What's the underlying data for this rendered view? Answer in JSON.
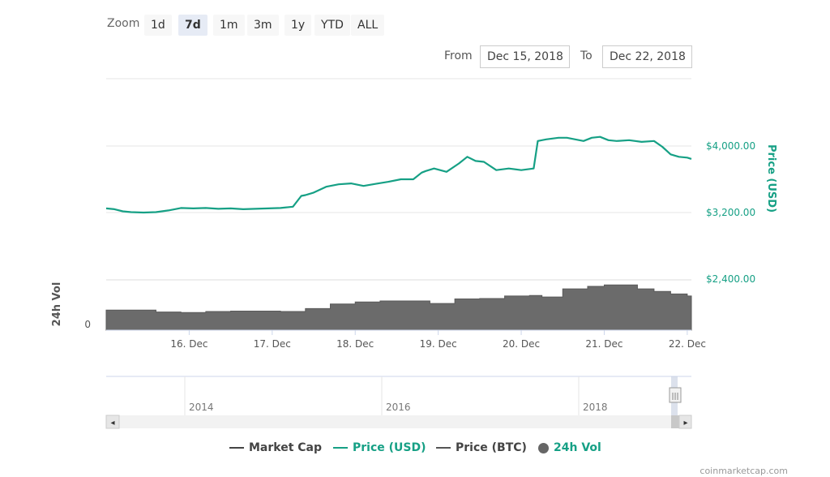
{
  "zoom": {
    "label": "Zoom",
    "buttons": [
      "1d",
      "7d",
      "1m",
      "3m",
      "1y",
      "YTD",
      "ALL"
    ],
    "active": "7d"
  },
  "range": {
    "from_label": "From",
    "from_value": "Dec 15, 2018",
    "to_label": "To",
    "to_value": "Dec 22, 2018"
  },
  "colors": {
    "price_usd": "#16a085",
    "volume": "#666666",
    "market_cap": "#444444",
    "price_btc": "#555555"
  },
  "chart_data": {
    "type": "line",
    "y_axis_title": "Price (USD)",
    "y_ticks": [
      "$4,000.00",
      "$3,200.00",
      "$2,400.00"
    ],
    "ylim": [
      2400,
      4800
    ],
    "x_tick_labels": [
      "16. Dec",
      "17. Dec",
      "18. Dec",
      "19. Dec",
      "20. Dec",
      "21. Dec",
      "22. Dec"
    ],
    "series": [
      {
        "name": "Price (USD)",
        "x": [
          15.0,
          15.1,
          15.2,
          15.3,
          15.45,
          15.6,
          15.75,
          15.9,
          16.05,
          16.2,
          16.35,
          16.5,
          16.65,
          16.8,
          16.95,
          17.1,
          17.25,
          17.35,
          17.4,
          17.5,
          17.65,
          17.8,
          17.95,
          18.1,
          18.25,
          18.4,
          18.55,
          18.7,
          18.8,
          18.85,
          18.95,
          19.1,
          19.25,
          19.35,
          19.45,
          19.55,
          19.7,
          19.85,
          20.0,
          20.15,
          20.2,
          20.3,
          20.45,
          20.55,
          20.65,
          20.75,
          20.85,
          20.95,
          21.05,
          21.15,
          21.3,
          21.45,
          21.6,
          21.7,
          21.8,
          21.9,
          22.0,
          22.05
        ],
        "y": [
          3250,
          3240,
          3215,
          3205,
          3200,
          3205,
          3225,
          3255,
          3250,
          3255,
          3245,
          3250,
          3240,
          3245,
          3250,
          3255,
          3270,
          3400,
          3410,
          3440,
          3510,
          3540,
          3550,
          3520,
          3545,
          3570,
          3600,
          3600,
          3680,
          3700,
          3730,
          3690,
          3790,
          3870,
          3820,
          3810,
          3710,
          3730,
          3710,
          3730,
          4060,
          4080,
          4100,
          4100,
          4080,
          4060,
          4100,
          4110,
          4070,
          4060,
          4070,
          4050,
          4060,
          3990,
          3900,
          3870,
          3860,
          3845
        ]
      },
      {
        "name": "24h Vol",
        "axis_title": "24h Vol",
        "axis_tick": "0",
        "x": [
          15.0,
          15.3,
          15.6,
          15.9,
          16.2,
          16.5,
          16.8,
          17.1,
          17.4,
          17.7,
          18.0,
          18.3,
          18.6,
          18.9,
          19.2,
          19.5,
          19.8,
          20.1,
          20.25,
          20.5,
          20.8,
          21.0,
          21.2,
          21.4,
          21.6,
          21.8,
          22.0,
          22.05
        ],
        "y": [
          0.4,
          0.4,
          0.36,
          0.35,
          0.37,
          0.38,
          0.38,
          0.37,
          0.43,
          0.52,
          0.56,
          0.58,
          0.58,
          0.53,
          0.62,
          0.63,
          0.68,
          0.69,
          0.66,
          0.82,
          0.87,
          0.9,
          0.9,
          0.82,
          0.77,
          0.72,
          0.68,
          0.66
        ]
      }
    ]
  },
  "navigator": {
    "labels": [
      "2014",
      "2016",
      "2018"
    ],
    "left_arrow": "◂",
    "right_arrow": "▸",
    "handle": "|||"
  },
  "legend": {
    "items": [
      {
        "label": "Market Cap",
        "kind": "line",
        "color": "#444444"
      },
      {
        "label": "Price (USD)",
        "kind": "line",
        "color": "#16a085"
      },
      {
        "label": "Price (BTC)",
        "kind": "line",
        "color": "#555555"
      },
      {
        "label": "24h Vol",
        "kind": "dot",
        "color": "#666666"
      }
    ]
  },
  "credits": "coinmarketcap.com"
}
